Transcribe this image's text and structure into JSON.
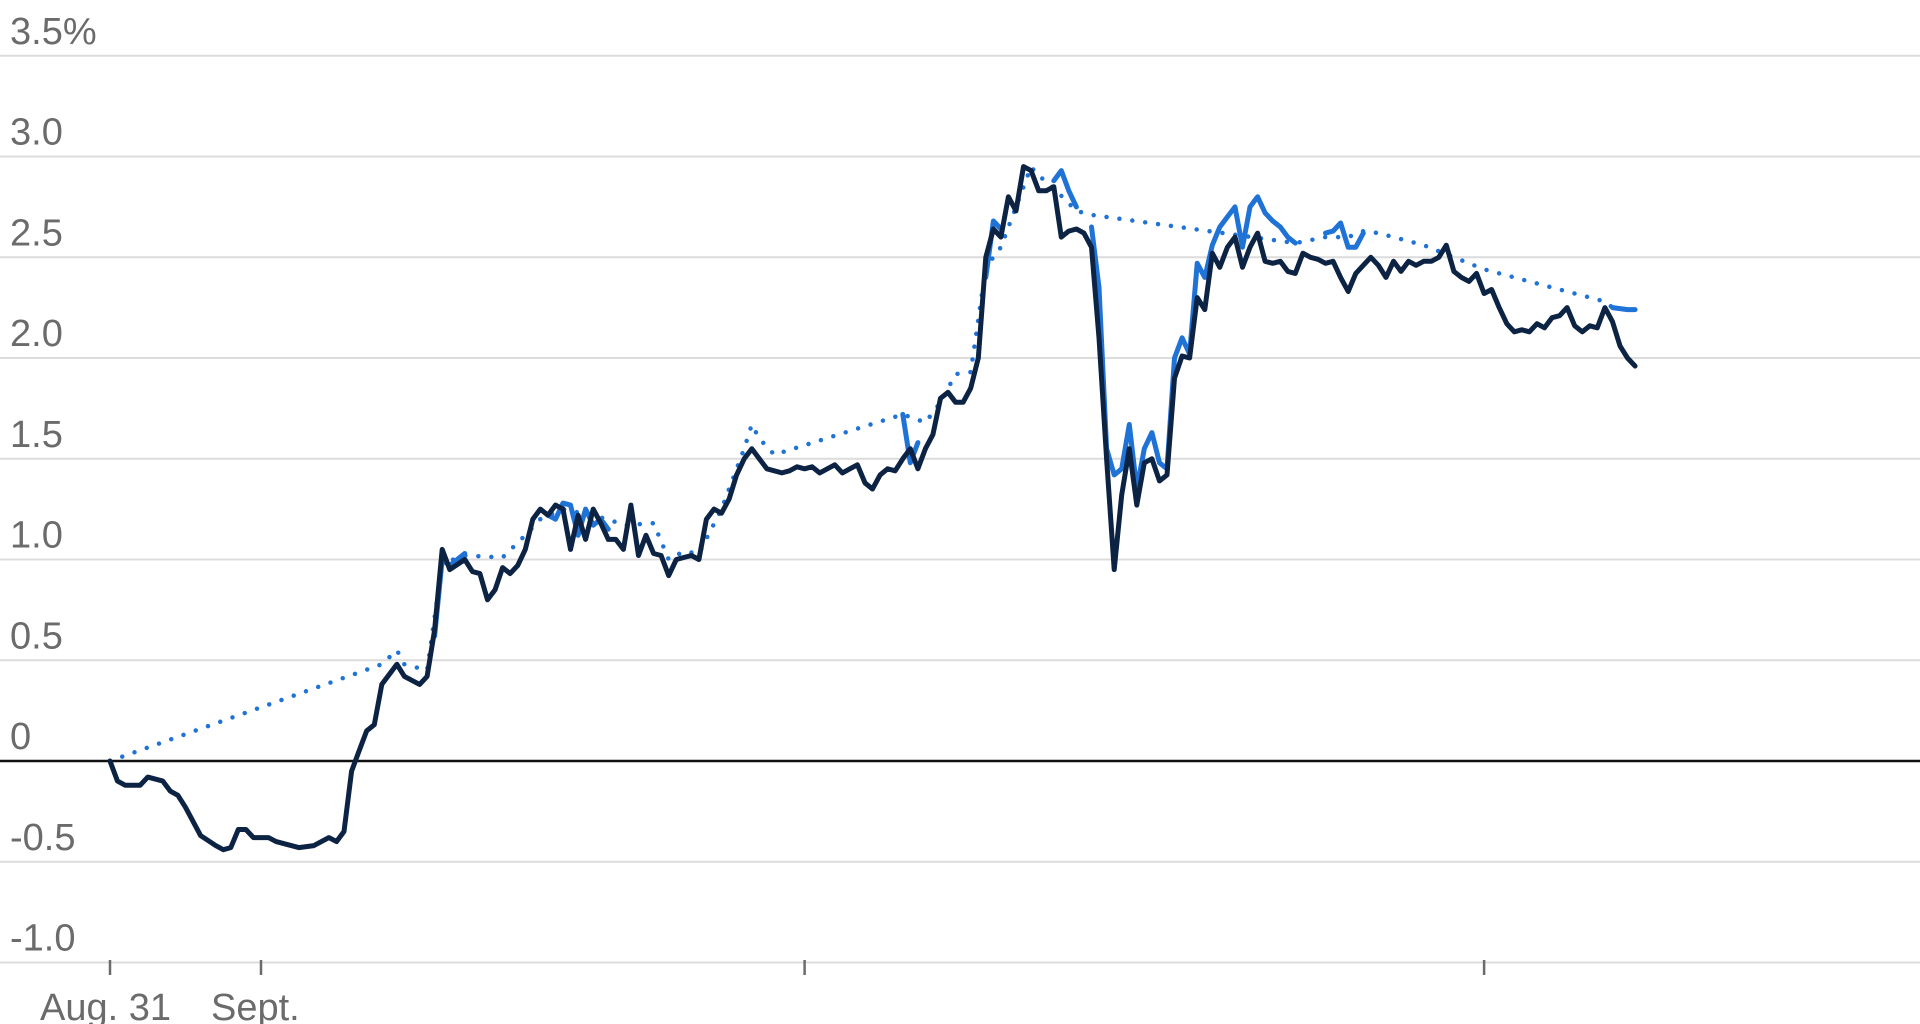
{
  "chart_data": {
    "type": "line",
    "title": "",
    "xlabel": "",
    "ylabel": "",
    "ylim": [
      -1.0,
      3.5
    ],
    "yticks": [
      {
        "value": 3.5,
        "label": "3.5%"
      },
      {
        "value": 3.0,
        "label": "3.0"
      },
      {
        "value": 2.5,
        "label": "2.5"
      },
      {
        "value": 2.0,
        "label": "2.0"
      },
      {
        "value": 1.5,
        "label": "1.5"
      },
      {
        "value": 1.0,
        "label": "1.0"
      },
      {
        "value": 0.5,
        "label": "0.5"
      },
      {
        "value": 0,
        "label": "0"
      },
      {
        "value": -0.5,
        "label": "-0.5"
      },
      {
        "value": -1.0,
        "label": "-1.0"
      }
    ],
    "xlim": [
      0,
      200
    ],
    "xticks": [
      {
        "value": 0,
        "label": "Aug. 31"
      },
      {
        "value": 20,
        "label": "Sept."
      },
      {
        "value": 92,
        "label": ""
      },
      {
        "value": 182,
        "label": ""
      }
    ],
    "grid": true,
    "colors": {
      "dark": "#0c2344",
      "blue": "#1f72d6",
      "gridline": "#dcdcdc",
      "zero": "#111111",
      "ticktext": "#6b6b6b"
    },
    "series": [
      {
        "color": "#0c2344",
        "style": "solid",
        "points": [
          [
            0,
            0.0
          ],
          [
            1,
            -0.1
          ],
          [
            2,
            -0.12
          ],
          [
            4,
            -0.12
          ],
          [
            5,
            -0.08
          ],
          [
            7,
            -0.1
          ],
          [
            8,
            -0.15
          ],
          [
            9,
            -0.17
          ],
          [
            10,
            -0.23
          ],
          [
            12,
            -0.37
          ],
          [
            14,
            -0.42
          ],
          [
            15,
            -0.44
          ],
          [
            16,
            -0.43
          ],
          [
            17,
            -0.34
          ],
          [
            18,
            -0.34
          ],
          [
            19,
            -0.38
          ],
          [
            21,
            -0.38
          ],
          [
            22,
            -0.4
          ],
          [
            24,
            -0.42
          ],
          [
            25,
            -0.43
          ],
          [
            27,
            -0.42
          ],
          [
            29,
            -0.38
          ],
          [
            30,
            -0.4
          ],
          [
            31,
            -0.35
          ],
          [
            32,
            -0.05
          ],
          [
            33,
            0.05
          ],
          [
            34,
            0.15
          ],
          [
            35,
            0.18
          ],
          [
            36,
            0.38
          ],
          [
            38,
            0.48
          ],
          [
            39,
            0.42
          ],
          [
            40,
            0.4
          ],
          [
            41,
            0.38
          ],
          [
            42,
            0.42
          ],
          [
            43,
            0.65
          ],
          [
            44,
            1.05
          ],
          [
            45,
            0.95
          ],
          [
            47,
            1.0
          ],
          [
            48,
            0.94
          ],
          [
            49,
            0.93
          ],
          [
            50,
            0.8
          ],
          [
            51,
            0.85
          ],
          [
            52,
            0.96
          ],
          [
            53,
            0.93
          ],
          [
            54,
            0.97
          ],
          [
            55,
            1.05
          ],
          [
            56,
            1.2
          ],
          [
            57,
            1.25
          ],
          [
            58,
            1.22
          ],
          [
            59,
            1.27
          ],
          [
            60,
            1.25
          ],
          [
            61,
            1.05
          ],
          [
            62,
            1.22
          ],
          [
            63,
            1.1
          ],
          [
            64,
            1.25
          ],
          [
            65,
            1.18
          ],
          [
            66,
            1.1
          ],
          [
            67,
            1.1
          ],
          [
            68,
            1.05
          ],
          [
            69,
            1.27
          ],
          [
            70,
            1.02
          ],
          [
            71,
            1.12
          ],
          [
            72,
            1.03
          ],
          [
            73,
            1.02
          ],
          [
            74,
            0.92
          ],
          [
            75,
            1.0
          ],
          [
            76,
            1.01
          ],
          [
            77,
            1.02
          ],
          [
            78,
            1.0
          ],
          [
            79,
            1.2
          ],
          [
            80,
            1.25
          ],
          [
            81,
            1.23
          ],
          [
            82,
            1.3
          ],
          [
            83,
            1.42
          ],
          [
            84,
            1.5
          ],
          [
            85,
            1.55
          ],
          [
            86,
            1.5
          ],
          [
            87,
            1.45
          ],
          [
            89,
            1.43
          ],
          [
            90,
            1.44
          ],
          [
            91,
            1.46
          ],
          [
            92,
            1.45
          ],
          [
            93,
            1.46
          ],
          [
            94,
            1.43
          ],
          [
            95,
            1.45
          ],
          [
            96,
            1.47
          ],
          [
            97,
            1.43
          ],
          [
            98,
            1.45
          ],
          [
            99,
            1.47
          ],
          [
            100,
            1.38
          ],
          [
            101,
            1.35
          ],
          [
            102,
            1.42
          ],
          [
            103,
            1.45
          ],
          [
            104,
            1.44
          ],
          [
            105,
            1.5
          ],
          [
            106,
            1.55
          ],
          [
            107,
            1.45
          ],
          [
            108,
            1.55
          ],
          [
            109,
            1.62
          ],
          [
            110,
            1.8
          ],
          [
            111,
            1.83
          ],
          [
            112,
            1.78
          ],
          [
            113,
            1.78
          ],
          [
            114,
            1.85
          ],
          [
            115,
            2.0
          ],
          [
            116,
            2.5
          ],
          [
            117,
            2.64
          ],
          [
            118,
            2.6
          ],
          [
            119,
            2.8
          ],
          [
            120,
            2.73
          ],
          [
            121,
            2.95
          ],
          [
            122,
            2.93
          ],
          [
            123,
            2.83
          ],
          [
            124,
            2.83
          ],
          [
            125,
            2.85
          ],
          [
            126,
            2.6
          ],
          [
            127,
            2.63
          ],
          [
            128,
            2.64
          ],
          [
            129,
            2.62
          ],
          [
            130,
            2.55
          ],
          [
            131,
            2.1
          ],
          [
            132,
            1.5
          ],
          [
            133,
            0.95
          ],
          [
            134,
            1.32
          ],
          [
            135,
            1.55
          ],
          [
            136,
            1.27
          ],
          [
            137,
            1.48
          ],
          [
            138,
            1.5
          ],
          [
            139,
            1.39
          ],
          [
            140,
            1.42
          ],
          [
            141,
            1.9
          ],
          [
            142,
            2.01
          ],
          [
            143,
            2.0
          ],
          [
            144,
            2.3
          ],
          [
            145,
            2.24
          ],
          [
            146,
            2.52
          ],
          [
            147,
            2.45
          ],
          [
            148,
            2.55
          ],
          [
            149,
            2.6
          ],
          [
            150,
            2.45
          ],
          [
            151,
            2.55
          ],
          [
            152,
            2.62
          ],
          [
            153,
            2.48
          ],
          [
            154,
            2.47
          ],
          [
            155,
            2.48
          ],
          [
            156,
            2.43
          ],
          [
            157,
            2.42
          ],
          [
            158,
            2.52
          ],
          [
            159,
            2.5
          ],
          [
            160,
            2.49
          ],
          [
            161,
            2.47
          ],
          [
            162,
            2.48
          ],
          [
            163,
            2.4
          ],
          [
            164,
            2.33
          ],
          [
            165,
            2.42
          ],
          [
            166,
            2.46
          ],
          [
            167,
            2.5
          ],
          [
            168,
            2.46
          ],
          [
            169,
            2.4
          ],
          [
            170,
            2.48
          ],
          [
            171,
            2.43
          ],
          [
            172,
            2.48
          ],
          [
            173,
            2.46
          ],
          [
            174,
            2.48
          ],
          [
            175,
            2.48
          ],
          [
            176,
            2.5
          ],
          [
            177,
            2.56
          ],
          [
            178,
            2.43
          ],
          [
            179,
            2.4
          ],
          [
            180,
            2.38
          ],
          [
            181,
            2.42
          ],
          [
            182,
            2.32
          ],
          [
            183,
            2.34
          ],
          [
            184,
            2.25
          ],
          [
            185,
            2.17
          ],
          [
            186,
            2.13
          ],
          [
            187,
            2.14
          ],
          [
            188,
            2.13
          ],
          [
            189,
            2.17
          ],
          [
            190,
            2.15
          ],
          [
            191,
            2.2
          ],
          [
            192,
            2.21
          ],
          [
            193,
            2.25
          ],
          [
            194,
            2.16
          ],
          [
            195,
            2.13
          ],
          [
            196,
            2.16
          ],
          [
            197,
            2.15
          ],
          [
            198,
            2.25
          ],
          [
            199,
            2.18
          ],
          [
            200,
            2.06
          ],
          [
            201,
            2.0
          ],
          [
            202,
            1.96
          ]
        ]
      },
      {
        "color": "#1f72d6",
        "style": "solid",
        "segments": [
          [
            [
              43,
              0.62
            ],
            [
              44,
              1.0
            ],
            [
              45,
              0.97
            ],
            [
              47,
              1.03
            ]
          ],
          [
            [
              58,
              1.22
            ],
            [
              59,
              1.2
            ],
            [
              60,
              1.28
            ],
            [
              61,
              1.27
            ],
            [
              62,
              1.12
            ],
            [
              63,
              1.25
            ],
            [
              64,
              1.17
            ],
            [
              65,
              1.2
            ],
            [
              66,
              1.15
            ]
          ],
          [
            [
              105,
              1.72
            ],
            [
              106,
              1.48
            ],
            [
              107,
              1.58
            ]
          ],
          [
            [
              116,
              2.4
            ],
            [
              117,
              2.68
            ],
            [
              118,
              2.64
            ]
          ],
          [
            [
              125,
              2.88
            ],
            [
              126,
              2.93
            ],
            [
              127,
              2.83
            ],
            [
              128,
              2.75
            ]
          ],
          [
            [
              130,
              2.65
            ],
            [
              131,
              2.35
            ],
            [
              132,
              1.55
            ],
            [
              133,
              1.42
            ],
            [
              134,
              1.45
            ],
            [
              135,
              1.67
            ],
            [
              136,
              1.35
            ],
            [
              137,
              1.55
            ],
            [
              138,
              1.63
            ],
            [
              139,
              1.48
            ],
            [
              140,
              1.45
            ],
            [
              141,
              2.0
            ],
            [
              142,
              2.1
            ],
            [
              143,
              2.02
            ],
            [
              144,
              2.47
            ],
            [
              145,
              2.4
            ],
            [
              146,
              2.56
            ],
            [
              147,
              2.65
            ],
            [
              148,
              2.7
            ],
            [
              149,
              2.75
            ],
            [
              150,
              2.55
            ],
            [
              151,
              2.75
            ],
            [
              152,
              2.8
            ],
            [
              153,
              2.72
            ],
            [
              154,
              2.68
            ],
            [
              155,
              2.65
            ],
            [
              156,
              2.6
            ],
            [
              157,
              2.57
            ]
          ],
          [
            [
              161,
              2.62
            ],
            [
              162,
              2.63
            ],
            [
              163,
              2.67
            ],
            [
              164,
              2.55
            ],
            [
              165,
              2.55
            ],
            [
              166,
              2.62
            ]
          ],
          [
            [
              199,
              2.25
            ],
            [
              201,
              2.24
            ],
            [
              202,
              2.24
            ]
          ]
        ]
      },
      {
        "color": "#1f72d6",
        "style": "dotted",
        "points": [
          [
            0,
            0.0
          ],
          [
            36,
            0.48
          ],
          [
            38,
            0.55
          ],
          [
            39,
            0.48
          ],
          [
            41,
            0.46
          ],
          [
            42,
            0.45
          ],
          [
            44,
            0.98
          ],
          [
            47,
            1.02
          ],
          [
            52,
            1.01
          ],
          [
            55,
            1.12
          ],
          [
            57,
            1.2
          ],
          [
            60,
            1.25
          ],
          [
            66,
            1.2
          ],
          [
            68,
            1.17
          ],
          [
            72,
            1.18
          ],
          [
            74,
            1.0
          ],
          [
            76,
            1.04
          ],
          [
            78,
            1.03
          ],
          [
            81,
            1.25
          ],
          [
            84,
            1.55
          ],
          [
            85,
            1.67
          ],
          [
            86,
            1.6
          ],
          [
            88,
            1.52
          ],
          [
            105,
            1.72
          ],
          [
            108,
            1.68
          ],
          [
            110,
            1.78
          ],
          [
            112,
            1.92
          ],
          [
            114,
            1.93
          ],
          [
            116,
            2.45
          ],
          [
            118,
            2.55
          ],
          [
            120,
            2.75
          ],
          [
            122,
            2.95
          ],
          [
            123,
            2.9
          ],
          [
            124,
            2.88
          ],
          [
            128,
            2.73
          ],
          [
            130,
            2.71
          ],
          [
            157,
            2.57
          ],
          [
            161,
            2.6
          ],
          [
            164,
            2.6
          ],
          [
            166,
            2.63
          ],
          [
            168,
            2.62
          ],
          [
            170,
            2.6
          ],
          [
            174,
            2.56
          ],
          [
            178,
            2.5
          ],
          [
            182,
            2.44
          ],
          [
            186,
            2.4
          ],
          [
            190,
            2.36
          ],
          [
            194,
            2.32
          ],
          [
            198,
            2.28
          ],
          [
            199,
            2.25
          ]
        ]
      }
    ]
  }
}
